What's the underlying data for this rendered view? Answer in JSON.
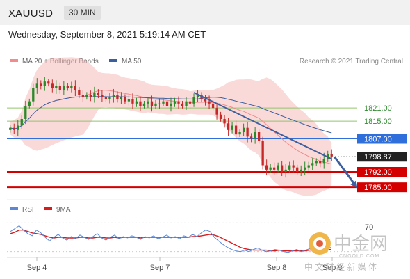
{
  "header": {
    "symbol": "XAUUSD",
    "timeframe": "30 MIN"
  },
  "datetime": "Wednesday, September 8, 2021 5:19:14 AM CET",
  "legend": {
    "ma20_label": "MA 20 + Bollinger Bands",
    "ma50_label": "MA 50",
    "credit": "Research © 2021 Trading Central"
  },
  "indicator_legend": {
    "rsi_label": "RSI",
    "ma_label": "9MA",
    "level_label": "70"
  },
  "watermark": {
    "text": "中金网",
    "subtext": "CNGOLD.COM",
    "tagline": "中 文 财 经 新 媒 体"
  },
  "colors": {
    "up": "#2a8a2a",
    "down": "#c62828",
    "ma20": "#f28b8b",
    "ma50": "#3a5fa0",
    "band": "#f6b9b9",
    "resistance_green": "#92c56b",
    "pivot_blue": "#2f6fdb",
    "support_red": "#d40000",
    "trend": "#3d5f9e",
    "rsi": "#5b87d6",
    "rsi_ma": "#d81c1c"
  },
  "chart_data": {
    "type": "candlestick",
    "x_labels": [
      "Sep 4",
      "Sep 7",
      "Sep 8",
      "Sep 9"
    ],
    "price_ylim": [
      1780,
      1840
    ],
    "last_price": 1798.87,
    "levels": [
      {
        "value": 1821.0,
        "label": "1821.00",
        "kind": "resistance"
      },
      {
        "value": 1815.0,
        "label": "1815.00",
        "kind": "resistance"
      },
      {
        "value": 1807.0,
        "label": "1807.00",
        "kind": "pivot"
      },
      {
        "value": 1792.0,
        "label": "1792.00",
        "kind": "support"
      },
      {
        "value": 1785.0,
        "label": "1785.00",
        "kind": "support"
      }
    ],
    "price_path": [
      1812,
      1811,
      1813,
      1816,
      1822,
      1824,
      1830,
      1832,
      1831,
      1833,
      1832,
      1830,
      1831,
      1829,
      1831,
      1830,
      1831,
      1829,
      1827,
      1826,
      1827,
      1826,
      1828,
      1827,
      1826,
      1825,
      1826,
      1827,
      1825,
      1826,
      1824,
      1825,
      1823,
      1824,
      1822,
      1823,
      1824,
      1822,
      1823,
      1823,
      1824,
      1822,
      1823,
      1824,
      1823,
      1822,
      1824,
      1823,
      1826,
      1827,
      1825,
      1824,
      1823,
      1821,
      1818,
      1816,
      1814,
      1811,
      1813,
      1809,
      1810,
      1812,
      1808,
      1807,
      1810,
      1806,
      1795,
      1793,
      1794,
      1793,
      1795,
      1792,
      1793,
      1795,
      1794,
      1792,
      1793,
      1794,
      1795,
      1796,
      1797,
      1796,
      1798,
      1800,
      1799
    ],
    "rsi_ylim": [
      20,
      80
    ],
    "rsi_level": 70,
    "rsi_path": [
      58,
      62,
      66,
      60,
      55,
      52,
      60,
      56,
      50,
      45,
      50,
      54,
      49,
      46,
      51,
      48,
      53,
      50,
      47,
      51,
      55,
      49,
      46,
      50,
      53,
      48,
      51,
      49,
      52,
      50,
      47,
      51,
      49,
      52,
      48,
      50,
      53,
      49,
      51,
      48,
      52,
      50,
      54,
      51,
      56,
      60,
      58,
      50,
      45,
      40,
      36,
      33,
      31,
      30,
      32,
      30,
      33,
      35,
      32,
      30,
      31,
      33,
      32,
      30,
      29,
      31,
      33,
      30,
      32,
      34,
      31,
      30,
      33,
      35,
      36
    ],
    "rsi_ma_path": [
      55,
      57,
      60,
      60,
      58,
      56,
      55,
      54,
      52,
      50,
      49,
      50,
      50,
      49,
      49,
      49,
      50,
      50,
      49,
      49,
      50,
      50,
      49,
      49,
      50,
      49,
      50,
      50,
      50,
      50,
      49,
      50,
      50,
      50,
      50,
      50,
      50,
      50,
      50,
      50,
      50,
      50,
      51,
      51,
      52,
      53,
      54,
      53,
      51,
      48,
      45,
      42,
      39,
      36,
      34,
      33,
      32,
      32,
      32,
      32,
      31,
      31,
      32,
      31,
      31,
      31,
      31,
      31,
      31,
      32,
      32,
      32,
      32,
      33,
      33
    ]
  }
}
